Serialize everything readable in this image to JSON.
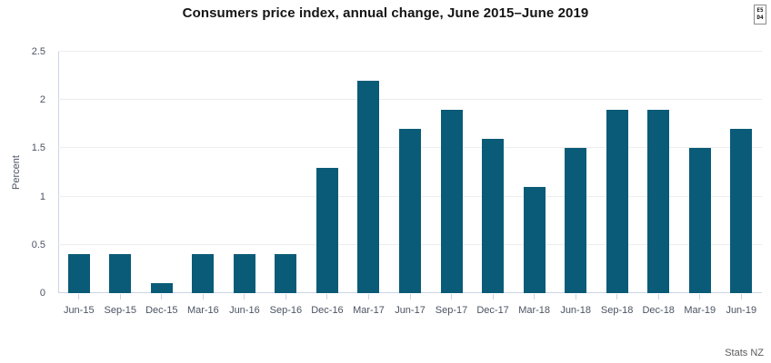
{
  "title": "Consumers price index, annual change, June 2015–June 2019",
  "attribution": "Stats NZ",
  "embed_badge": {
    "line1": "E5",
    "line2": "D4"
  },
  "colors": {
    "bar": "#0a5b77",
    "grid": "#ededed",
    "axis": "#c9d4e6",
    "tick_label": "#4a5362",
    "title": "#141414",
    "attribution": "#595959"
  },
  "chart_data": {
    "type": "bar",
    "title": "Consumers price index, annual change, June 2015–June 2019",
    "categories": [
      "Jun-15",
      "Sep-15",
      "Dec-15",
      "Mar-16",
      "Jun-16",
      "Sep-16",
      "Dec-16",
      "Mar-17",
      "Jun-17",
      "Sep-17",
      "Dec-17",
      "Mar-18",
      "Jun-18",
      "Sep-18",
      "Dec-18",
      "Mar-19",
      "Jun-19"
    ],
    "values": [
      0.4,
      0.4,
      0.1,
      0.4,
      0.4,
      0.4,
      1.3,
      2.2,
      1.7,
      1.9,
      1.6,
      1.1,
      1.5,
      1.9,
      1.9,
      1.5,
      1.7
    ],
    "xlabel": "",
    "ylabel": "Percent",
    "ylim": [
      0,
      2.5
    ],
    "yticks": [
      0,
      0.5,
      1,
      1.5,
      2,
      2.5
    ],
    "grid": true,
    "legend": false
  }
}
